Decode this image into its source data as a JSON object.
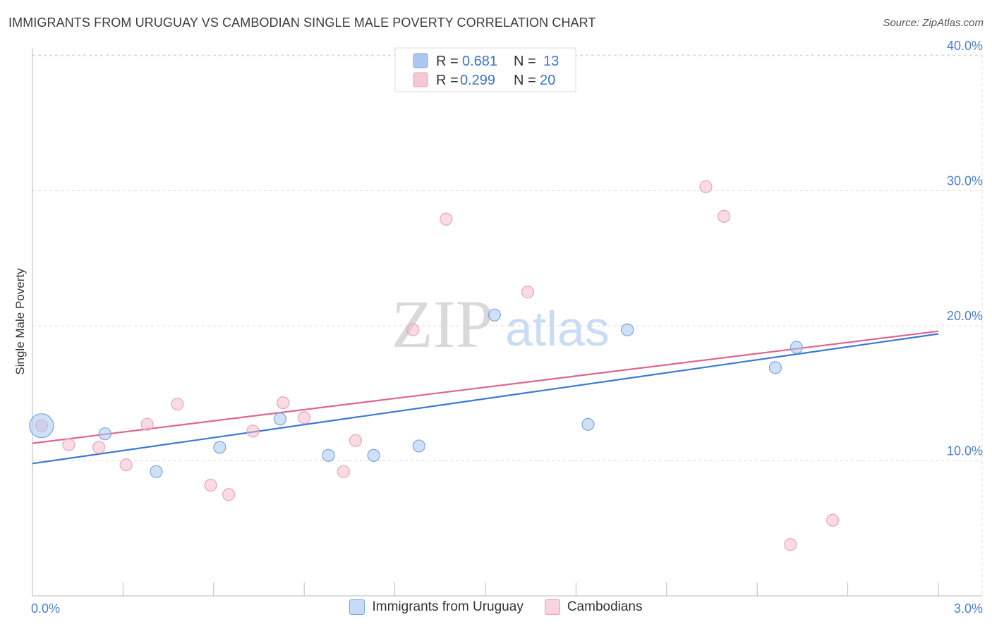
{
  "title": "IMMIGRANTS FROM URUGUAY VS CAMBODIAN SINGLE MALE POVERTY CORRELATION CHART",
  "source": "Source: ZipAtlas.com",
  "watermark": {
    "zip": "ZIP",
    "atlas": "atlas"
  },
  "legend_top": [
    {
      "r_label": "R =",
      "r_value": "0.681",
      "n_label": "N =",
      "n_value": "13",
      "color": "#aac8f0"
    },
    {
      "r_label": "R =",
      "r_value": "0.299",
      "n_label": "N =",
      "n_value": "20",
      "color": "#f5b5c8"
    }
  ],
  "chart_data": {
    "type": "scatter",
    "title": "IMMIGRANTS FROM URUGUAY VS CAMBODIAN SINGLE MALE POVERTY CORRELATION CHART",
    "xlabel": "",
    "ylabel": "Single Male Poverty",
    "xlim": [
      0.0,
      3.0
    ],
    "ylim": [
      0.0,
      42.0
    ],
    "x_tick_labels": [
      "0.0%",
      "3.0%"
    ],
    "y_ticks": [
      10,
      20,
      30,
      40
    ],
    "y_tick_labels": [
      "10.0%",
      "20.0%",
      "30.0%",
      "40.0%"
    ],
    "grid": true,
    "legend_position": "top-center",
    "series": [
      {
        "name": "Immigrants from Uruguay",
        "color": "#aac8f0",
        "line_color": "#3b78d4",
        "points": [
          {
            "x": 0.03,
            "y": 12.6,
            "big": true
          },
          {
            "x": 0.24,
            "y": 12.0
          },
          {
            "x": 0.41,
            "y": 9.2
          },
          {
            "x": 0.62,
            "y": 11.0
          },
          {
            "x": 0.82,
            "y": 13.1
          },
          {
            "x": 0.98,
            "y": 10.4
          },
          {
            "x": 1.13,
            "y": 10.4
          },
          {
            "x": 1.28,
            "y": 11.1
          },
          {
            "x": 1.53,
            "y": 20.8
          },
          {
            "x": 1.84,
            "y": 12.7
          },
          {
            "x": 1.97,
            "y": 19.7
          },
          {
            "x": 2.46,
            "y": 16.9
          },
          {
            "x": 2.53,
            "y": 18.4
          }
        ],
        "trend": {
          "x0": 0.0,
          "y0": 9.8,
          "x1": 3.0,
          "y1": 19.4
        }
      },
      {
        "name": "Cambodians",
        "color": "#f5b5c8",
        "line_color": "#e0648e",
        "points": [
          {
            "x": 0.03,
            "y": 12.6
          },
          {
            "x": 0.12,
            "y": 11.2
          },
          {
            "x": 0.22,
            "y": 11.0
          },
          {
            "x": 0.31,
            "y": 9.7
          },
          {
            "x": 0.38,
            "y": 12.7
          },
          {
            "x": 0.48,
            "y": 14.2
          },
          {
            "x": 0.59,
            "y": 8.2
          },
          {
            "x": 0.65,
            "y": 7.5
          },
          {
            "x": 0.73,
            "y": 12.2
          },
          {
            "x": 0.83,
            "y": 14.3
          },
          {
            "x": 0.9,
            "y": 13.2
          },
          {
            "x": 1.03,
            "y": 9.2
          },
          {
            "x": 1.07,
            "y": 11.5
          },
          {
            "x": 1.26,
            "y": 19.7
          },
          {
            "x": 1.37,
            "y": 27.9
          },
          {
            "x": 1.64,
            "y": 22.5
          },
          {
            "x": 2.23,
            "y": 30.3
          },
          {
            "x": 2.29,
            "y": 28.1
          },
          {
            "x": 2.51,
            "y": 3.8
          },
          {
            "x": 2.65,
            "y": 5.6
          }
        ],
        "trend": {
          "x0": 0.0,
          "y0": 11.3,
          "x1": 3.0,
          "y1": 19.6
        }
      }
    ]
  }
}
